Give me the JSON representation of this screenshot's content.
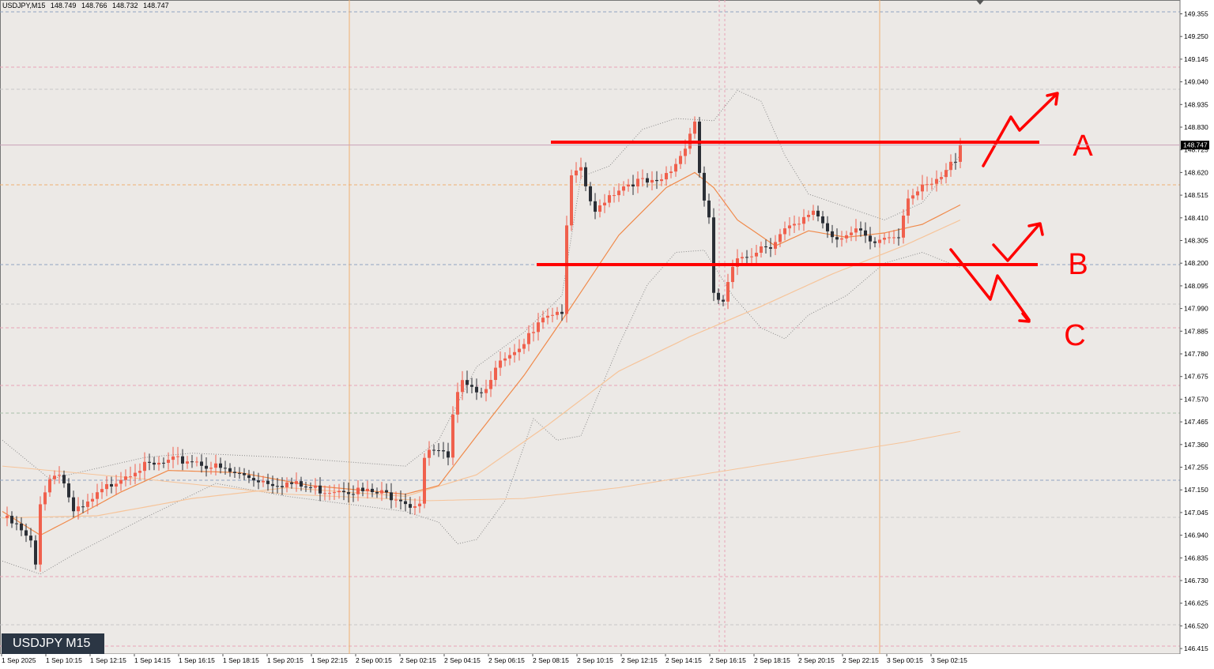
{
  "header": {
    "symbol_timeframe": "USDJPY,M15",
    "ohlc": [
      "148.749",
      "148.766",
      "148.732",
      "148.747"
    ]
  },
  "symbol_badge": "USDJPY M15",
  "colors": {
    "background": "#ece9e6",
    "bull_candle": "#f0604d",
    "bear_candle": "#2b2f36",
    "ma_fast": "#f08a4b",
    "ma_slow": "#f6c49a",
    "bollinger": "#8a8a8a",
    "annotation": "#ff0000",
    "grid_pink": "#e9a3b6",
    "grid_blue": "#8fa3c2",
    "grid_orange": "#f0b070",
    "vline_orange": "#f0b070",
    "price_tag_bg": "#000000"
  },
  "chart_data": {
    "type": "candlestick",
    "title": "USDJPY,M15",
    "ylim": [
      146.37,
      149.43
    ],
    "y_ticks": [
      "149.355",
      "149.250",
      "149.145",
      "149.040",
      "148.935",
      "148.830",
      "148.725",
      "148.620",
      "148.515",
      "148.410",
      "148.305",
      "148.200",
      "148.095",
      "147.990",
      "147.885",
      "147.780",
      "147.675",
      "147.570",
      "147.465",
      "147.360",
      "147.255",
      "147.150",
      "147.045",
      "146.940",
      "146.835",
      "146.730",
      "146.625",
      "146.520",
      "146.415"
    ],
    "x_ticks": [
      "1 Sep 2025",
      "1 Sep 10:15",
      "1 Sep 12:15",
      "1 Sep 14:15",
      "1 Sep 16:15",
      "1 Sep 18:15",
      "1 Sep 20:15",
      "1 Sep 22:15",
      "2 Sep 00:15",
      "2 Sep 02:15",
      "2 Sep 04:15",
      "2 Sep 06:15",
      "2 Sep 08:15",
      "2 Sep 10:15",
      "2 Sep 12:15",
      "2 Sep 14:15",
      "2 Sep 16:15",
      "2 Sep 18:15",
      "2 Sep 20:15",
      "2 Sep 22:15",
      "3 Sep 00:15",
      "3 Sep 02:15"
    ],
    "current_price": "148.747",
    "close_path": [
      [
        0,
        147.02
      ],
      [
        3,
        146.98
      ],
      [
        6,
        146.9
      ],
      [
        7,
        146.8
      ],
      [
        8,
        147.1
      ],
      [
        10,
        147.2
      ],
      [
        12,
        147.24
      ],
      [
        14,
        147.12
      ],
      [
        15,
        147.04
      ],
      [
        17,
        147.06
      ],
      [
        20,
        147.12
      ],
      [
        24,
        147.2
      ],
      [
        28,
        147.25
      ],
      [
        32,
        147.26
      ],
      [
        36,
        147.28
      ],
      [
        40,
        147.29
      ],
      [
        44,
        147.26
      ],
      [
        48,
        147.23
      ],
      [
        52,
        147.21
      ],
      [
        56,
        147.19
      ],
      [
        60,
        147.18
      ],
      [
        64,
        147.16
      ],
      [
        68,
        147.15
      ],
      [
        72,
        147.16
      ],
      [
        76,
        147.14
      ],
      [
        80,
        147.13
      ],
      [
        84,
        147.12
      ],
      [
        86,
        147.08
      ],
      [
        88,
        147.1
      ],
      [
        89,
        147.3
      ],
      [
        91,
        147.33
      ],
      [
        93,
        147.31
      ],
      [
        94,
        147.28
      ],
      [
        95,
        147.48
      ],
      [
        97,
        147.68
      ],
      [
        99,
        147.64
      ],
      [
        101,
        147.6
      ],
      [
        103,
        147.68
      ],
      [
        106,
        147.75
      ],
      [
        109,
        147.78
      ],
      [
        111,
        147.86
      ],
      [
        113,
        147.95
      ],
      [
        115,
        147.97
      ],
      [
        118,
        147.98
      ],
      [
        119,
        148.35
      ],
      [
        120,
        148.6
      ],
      [
        122,
        148.62
      ],
      [
        125,
        148.42
      ],
      [
        127,
        148.5
      ],
      [
        130,
        148.55
      ],
      [
        133,
        148.58
      ],
      [
        136,
        148.57
      ],
      [
        138,
        148.56
      ],
      [
        141,
        148.63
      ],
      [
        143,
        148.7
      ],
      [
        146,
        148.86
      ],
      [
        147,
        148.62
      ],
      [
        148,
        148.5
      ],
      [
        149,
        148.4
      ],
      [
        150,
        148.04
      ],
      [
        152,
        148.02
      ],
      [
        154,
        148.17
      ],
      [
        156,
        148.23
      ],
      [
        158,
        148.25
      ],
      [
        160,
        148.28
      ],
      [
        162,
        148.29
      ],
      [
        165,
        148.35
      ],
      [
        168,
        148.37
      ],
      [
        171,
        148.45
      ],
      [
        173,
        148.39
      ],
      [
        175,
        148.33
      ],
      [
        178,
        148.33
      ],
      [
        181,
        148.34
      ],
      [
        183,
        148.28
      ],
      [
        186,
        148.32
      ],
      [
        189,
        148.34
      ],
      [
        191,
        148.52
      ],
      [
        193,
        148.53
      ],
      [
        195,
        148.55
      ],
      [
        197,
        148.57
      ],
      [
        199,
        148.62
      ],
      [
        201,
        148.69
      ],
      [
        202,
        148.76
      ]
    ],
    "ma_fast": [
      [
        0,
        147.05
      ],
      [
        8,
        146.94
      ],
      [
        15,
        147.02
      ],
      [
        25,
        147.14
      ],
      [
        35,
        147.24
      ],
      [
        50,
        147.23
      ],
      [
        65,
        147.17
      ],
      [
        85,
        147.13
      ],
      [
        92,
        147.17
      ],
      [
        100,
        147.4
      ],
      [
        110,
        147.68
      ],
      [
        120,
        148.0
      ],
      [
        130,
        148.33
      ],
      [
        140,
        148.55
      ],
      [
        146,
        148.62
      ],
      [
        150,
        148.55
      ],
      [
        155,
        148.4
      ],
      [
        163,
        148.28
      ],
      [
        170,
        148.35
      ],
      [
        178,
        148.32
      ],
      [
        186,
        148.34
      ],
      [
        194,
        148.38
      ],
      [
        202,
        148.47
      ]
    ],
    "ma_slow": [
      [
        0,
        147.02
      ],
      [
        20,
        147.03
      ],
      [
        40,
        147.11
      ],
      [
        60,
        147.16
      ],
      [
        85,
        147.12
      ],
      [
        100,
        147.22
      ],
      [
        115,
        147.45
      ],
      [
        130,
        147.7
      ],
      [
        145,
        147.86
      ],
      [
        160,
        148.0
      ],
      [
        175,
        148.15
      ],
      [
        190,
        148.28
      ],
      [
        202,
        148.4
      ]
    ],
    "ma_long": [
      [
        0,
        147.26
      ],
      [
        30,
        147.2
      ],
      [
        60,
        147.13
      ],
      [
        90,
        147.1
      ],
      [
        110,
        147.11
      ],
      [
        130,
        147.16
      ],
      [
        150,
        147.23
      ],
      [
        170,
        147.3
      ],
      [
        190,
        147.37
      ],
      [
        202,
        147.42
      ]
    ],
    "bb_upper": [
      [
        0,
        147.38
      ],
      [
        10,
        147.2
      ],
      [
        20,
        147.25
      ],
      [
        30,
        147.3
      ],
      [
        40,
        147.32
      ],
      [
        60,
        147.3
      ],
      [
        85,
        147.26
      ],
      [
        92,
        147.38
      ],
      [
        100,
        147.72
      ],
      [
        110,
        147.88
      ],
      [
        118,
        148.05
      ],
      [
        122,
        148.6
      ],
      [
        128,
        148.65
      ],
      [
        135,
        148.82
      ],
      [
        142,
        148.87
      ],
      [
        150,
        148.86
      ],
      [
        155,
        149.0
      ],
      [
        160,
        148.95
      ],
      [
        165,
        148.7
      ],
      [
        170,
        148.52
      ],
      [
        178,
        148.46
      ],
      [
        186,
        148.4
      ],
      [
        194,
        148.48
      ],
      [
        202,
        148.7
      ]
    ],
    "bb_lower": [
      [
        0,
        146.82
      ],
      [
        8,
        146.76
      ],
      [
        15,
        146.85
      ],
      [
        30,
        147.02
      ],
      [
        45,
        147.18
      ],
      [
        60,
        147.12
      ],
      [
        85,
        147.05
      ],
      [
        92,
        147.0
      ],
      [
        96,
        146.9
      ],
      [
        100,
        146.92
      ],
      [
        106,
        147.1
      ],
      [
        112,
        147.48
      ],
      [
        117,
        147.38
      ],
      [
        122,
        147.4
      ],
      [
        130,
        147.82
      ],
      [
        136,
        148.1
      ],
      [
        142,
        148.25
      ],
      [
        148,
        148.26
      ],
      [
        154,
        148.05
      ],
      [
        160,
        147.9
      ],
      [
        165,
        147.85
      ],
      [
        170,
        147.96
      ],
      [
        178,
        148.05
      ],
      [
        186,
        148.2
      ],
      [
        194,
        148.25
      ],
      [
        202,
        148.18
      ]
    ]
  },
  "annotations": {
    "labels": [
      "A",
      "B",
      "C"
    ]
  }
}
